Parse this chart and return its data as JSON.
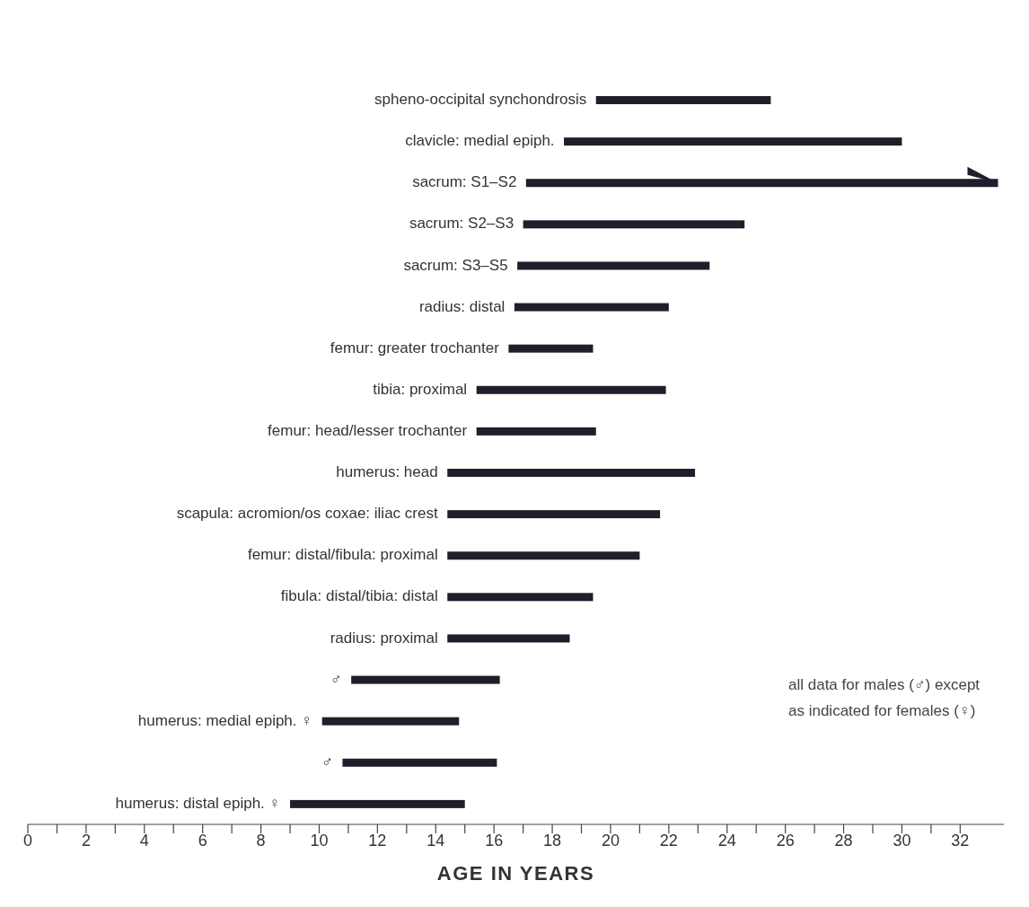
{
  "chart_data": {
    "type": "bar",
    "orientation": "horizontal",
    "xlabel": "AGE IN YEARS",
    "categories": [
      "spheno-occipital synchondrosis",
      "clavicle: medial epiph.",
      "sacrum: S1–S2",
      "sacrum: S2–S3",
      "sacrum:  S3–S5",
      "radius: distal",
      "femur: greater trochanter",
      "tibia: proximal",
      "femur: head/lesser trochanter",
      "humerus: head",
      "scapula: acromion/os coxae: iliac crest",
      "femur: distal/fibula: proximal",
      "fibula: distal/tibia: distal",
      "radius: proximal",
      "♂",
      "humerus: medial epiph. ♀",
      "♂",
      "humerus: distal epiph. ♀"
    ],
    "base": [
      19.5,
      18.4,
      17.1,
      17.0,
      16.8,
      16.7,
      16.5,
      15.4,
      15.4,
      14.4,
      14.4,
      14.4,
      14.4,
      14.4,
      11.1,
      10.1,
      10.8,
      9.0
    ],
    "values": [
      6.0,
      11.6,
      16.2,
      7.6,
      6.6,
      5.3,
      2.9,
      6.5,
      4.1,
      8.5,
      7.3,
      6.6,
      5.0,
      4.2,
      5.1,
      4.7,
      5.3,
      6.0
    ],
    "color": "#1f1f2b",
    "xlim": [
      0,
      33.5
    ],
    "xticks": [
      0,
      {
        "value": 1,
        "label": null
      },
      2,
      {
        "value": 3,
        "label": null
      },
      4,
      {
        "value": 5,
        "label": null
      },
      6,
      {
        "value": 7,
        "label": null
      },
      8,
      {
        "value": 9,
        "label": null
      },
      10,
      {
        "value": 11,
        "label": null
      },
      12,
      {
        "value": 13,
        "label": null
      },
      14,
      {
        "value": 15,
        "label": null
      },
      16,
      {
        "value": 17,
        "label": null
      },
      18,
      {
        "value": 19,
        "label": null
      },
      20,
      {
        "value": 21,
        "label": null
      },
      22,
      {
        "value": 23,
        "label": null
      },
      24,
      {
        "value": 25,
        "label": null
      },
      26,
      {
        "value": 27,
        "label": null
      },
      28,
      {
        "value": 29,
        "label": null
      },
      30,
      {
        "value": 31,
        "label": null
      },
      32
    ],
    "annotations": [
      "all data for males (♂) except as indicated for females (♀)"
    ]
  }
}
